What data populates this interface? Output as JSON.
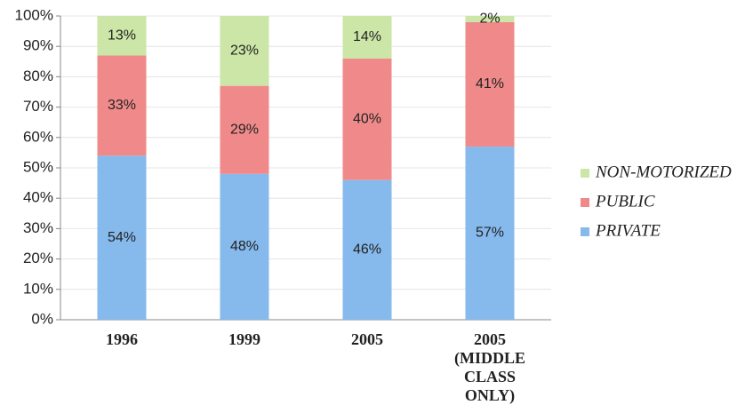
{
  "chart_data": {
    "type": "stacked_bar",
    "categories": [
      "1996",
      "1999",
      "2005",
      "2005 (MIDDLE CLASS ONLY)"
    ],
    "series": [
      {
        "name": "PRIVATE",
        "color": "#86b9ec",
        "values": [
          54,
          48,
          46,
          57
        ],
        "value_labels": [
          "54%",
          "48%",
          "46%",
          "57%"
        ]
      },
      {
        "name": "PUBLIC",
        "color": "#f08a8a",
        "values": [
          33,
          29,
          40,
          41
        ],
        "value_labels": [
          "33%",
          "29%",
          "40%",
          "41%"
        ]
      },
      {
        "name": "NON-MOTORIZED",
        "color": "#cbe6a6",
        "values": [
          13,
          23,
          14,
          2
        ],
        "value_labels": [
          "13%",
          "23%",
          "14%",
          "2%"
        ]
      }
    ],
    "ylim": [
      0,
      100
    ],
    "yticks": [
      {
        "value": 0,
        "label": "0%"
      },
      {
        "value": 10,
        "label": "10%"
      },
      {
        "value": 20,
        "label": "20%"
      },
      {
        "value": 30,
        "label": "30%"
      },
      {
        "value": 40,
        "label": "40%"
      },
      {
        "value": 50,
        "label": "50%"
      },
      {
        "value": 60,
        "label": "60%"
      },
      {
        "value": 70,
        "label": "70%"
      },
      {
        "value": 80,
        "label": "80%"
      },
      {
        "value": 90,
        "label": "90%"
      },
      {
        "value": 100,
        "label": "100%"
      }
    ],
    "grid": true,
    "legend": "right"
  }
}
